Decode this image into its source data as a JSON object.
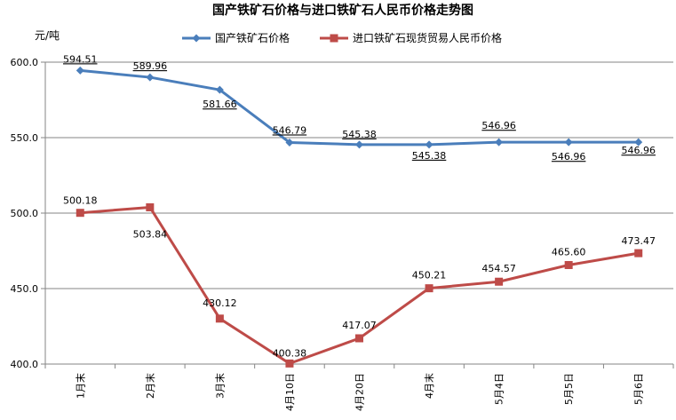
{
  "chart_data": {
    "type": "line",
    "title": "国产铁矿石价格与进口铁矿石人民币价格走势图",
    "ylabel": "元/吨",
    "xlabel": "",
    "ylim": [
      400,
      600
    ],
    "yticks": [
      "400.0",
      "450.0",
      "500.0",
      "550.0",
      "600.0"
    ],
    "grid": true,
    "legend_position": "top",
    "categories": [
      "1月末",
      "2月末",
      "3月末",
      "4月10日",
      "4月20日",
      "4月末",
      "5月4日",
      "5月5日",
      "5月6日"
    ],
    "series": [
      {
        "name": "国产铁矿石价格",
        "color": "#4a7ebb",
        "marker": "diamond",
        "values": [
          594.51,
          589.96,
          581.66,
          546.79,
          545.38,
          545.38,
          546.96,
          546.96,
          546.96
        ],
        "labels": [
          "594.51",
          "589.96",
          "581.66",
          "546.79",
          "545.38",
          "545.38",
          "546.96",
          "546.96",
          "546.96"
        ]
      },
      {
        "name": "进口铁矿石现货贸易人民币价格",
        "color": "#be4b48",
        "marker": "square",
        "values": [
          500.18,
          503.84,
          430.12,
          400.38,
          417.07,
          450.21,
          454.57,
          465.6,
          473.47
        ],
        "labels": [
          "500.18",
          "503.84",
          "430.12",
          "400.38",
          "417.07",
          "450.21",
          "454.57",
          "465.60",
          "473.47"
        ]
      }
    ]
  }
}
